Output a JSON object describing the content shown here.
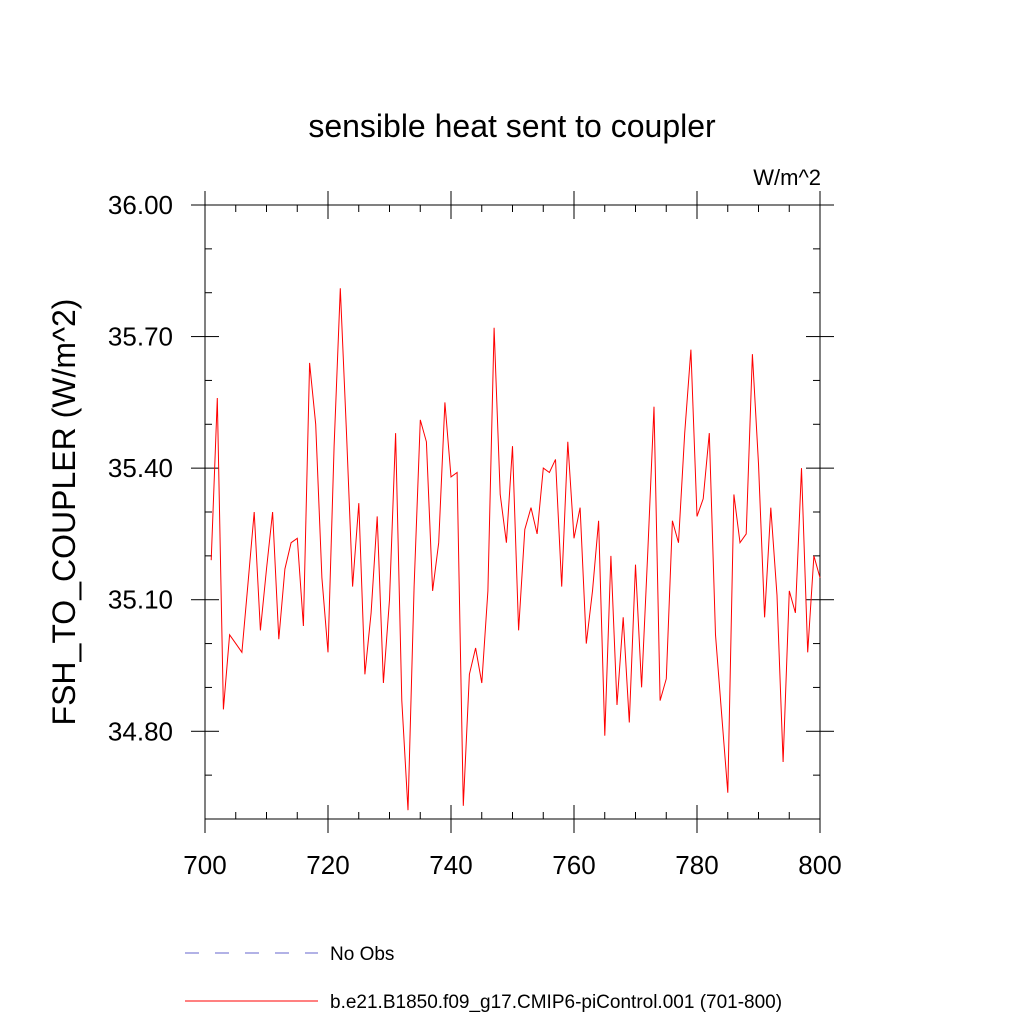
{
  "chart_data": {
    "type": "line",
    "title": "sensible heat sent to coupler",
    "units": "W/m^2",
    "ylabel": "FSH_TO_COUPLER  (W/m^2)",
    "xlabel": "",
    "xlim": [
      700,
      800
    ],
    "ylim": [
      34.6,
      36.0
    ],
    "x_ticks": [
      700,
      720,
      740,
      760,
      780,
      800
    ],
    "x_tick_labels": [
      "700",
      "720",
      "740",
      "760",
      "780",
      "800"
    ],
    "y_ticks": [
      34.8,
      35.1,
      35.4,
      35.7,
      36.0
    ],
    "y_tick_labels": [
      "34.80",
      "35.10",
      "35.40",
      "35.70",
      "36.00"
    ],
    "grid": false,
    "legend_position": "bottom",
    "legend": [
      {
        "label": "No Obs",
        "color": "#6666cc",
        "style": "dashed"
      },
      {
        "label": "b.e21.B1850.f09_g17.CMIP6-piControl.001 (701-800)",
        "color": "#ff0000",
        "style": "solid"
      }
    ],
    "series": [
      {
        "name": "b.e21.B1850.f09_g17.CMIP6-piControl.001 (701-800)",
        "color": "#ff0000",
        "x": [
          701,
          702,
          703,
          704,
          705,
          706,
          707,
          708,
          709,
          710,
          711,
          712,
          713,
          714,
          715,
          716,
          717,
          718,
          719,
          720,
          721,
          722,
          723,
          724,
          725,
          726,
          727,
          728,
          729,
          730,
          731,
          732,
          733,
          734,
          735,
          736,
          737,
          738,
          739,
          740,
          741,
          742,
          743,
          744,
          745,
          746,
          747,
          748,
          749,
          750,
          751,
          752,
          753,
          754,
          755,
          756,
          757,
          758,
          759,
          760,
          761,
          762,
          763,
          764,
          765,
          766,
          767,
          768,
          769,
          770,
          771,
          772,
          773,
          774,
          775,
          776,
          777,
          778,
          779,
          780,
          781,
          782,
          783,
          784,
          785,
          786,
          787,
          788,
          789,
          790,
          791,
          792,
          793,
          794,
          795,
          796,
          797,
          798,
          799,
          800
        ],
        "values": [
          35.19,
          35.56,
          34.85,
          35.02,
          35.0,
          34.98,
          35.14,
          35.3,
          35.03,
          35.17,
          35.3,
          35.01,
          35.17,
          35.23,
          35.24,
          35.04,
          35.64,
          35.5,
          35.15,
          34.98,
          35.45,
          35.81,
          35.48,
          35.13,
          35.32,
          34.93,
          35.07,
          35.29,
          34.91,
          35.1,
          35.48,
          34.87,
          34.62,
          35.13,
          35.51,
          35.46,
          35.12,
          35.23,
          35.55,
          35.38,
          35.39,
          34.63,
          34.93,
          34.99,
          34.91,
          35.12,
          35.72,
          35.34,
          35.23,
          35.45,
          35.03,
          35.26,
          35.31,
          35.25,
          35.4,
          35.39,
          35.42,
          35.13,
          35.46,
          35.24,
          35.31,
          35.0,
          35.12,
          35.28,
          34.79,
          35.2,
          34.86,
          35.06,
          34.82,
          35.18,
          34.9,
          35.21,
          35.54,
          34.87,
          34.92,
          35.28,
          35.23,
          35.48,
          35.67,
          35.29,
          35.33,
          35.48,
          35.02,
          34.84,
          34.66,
          35.34,
          35.23,
          35.25,
          35.66,
          35.41,
          35.06,
          35.31,
          35.11,
          34.73,
          35.12,
          35.07,
          35.4,
          34.98,
          35.2,
          35.15
        ]
      }
    ]
  }
}
